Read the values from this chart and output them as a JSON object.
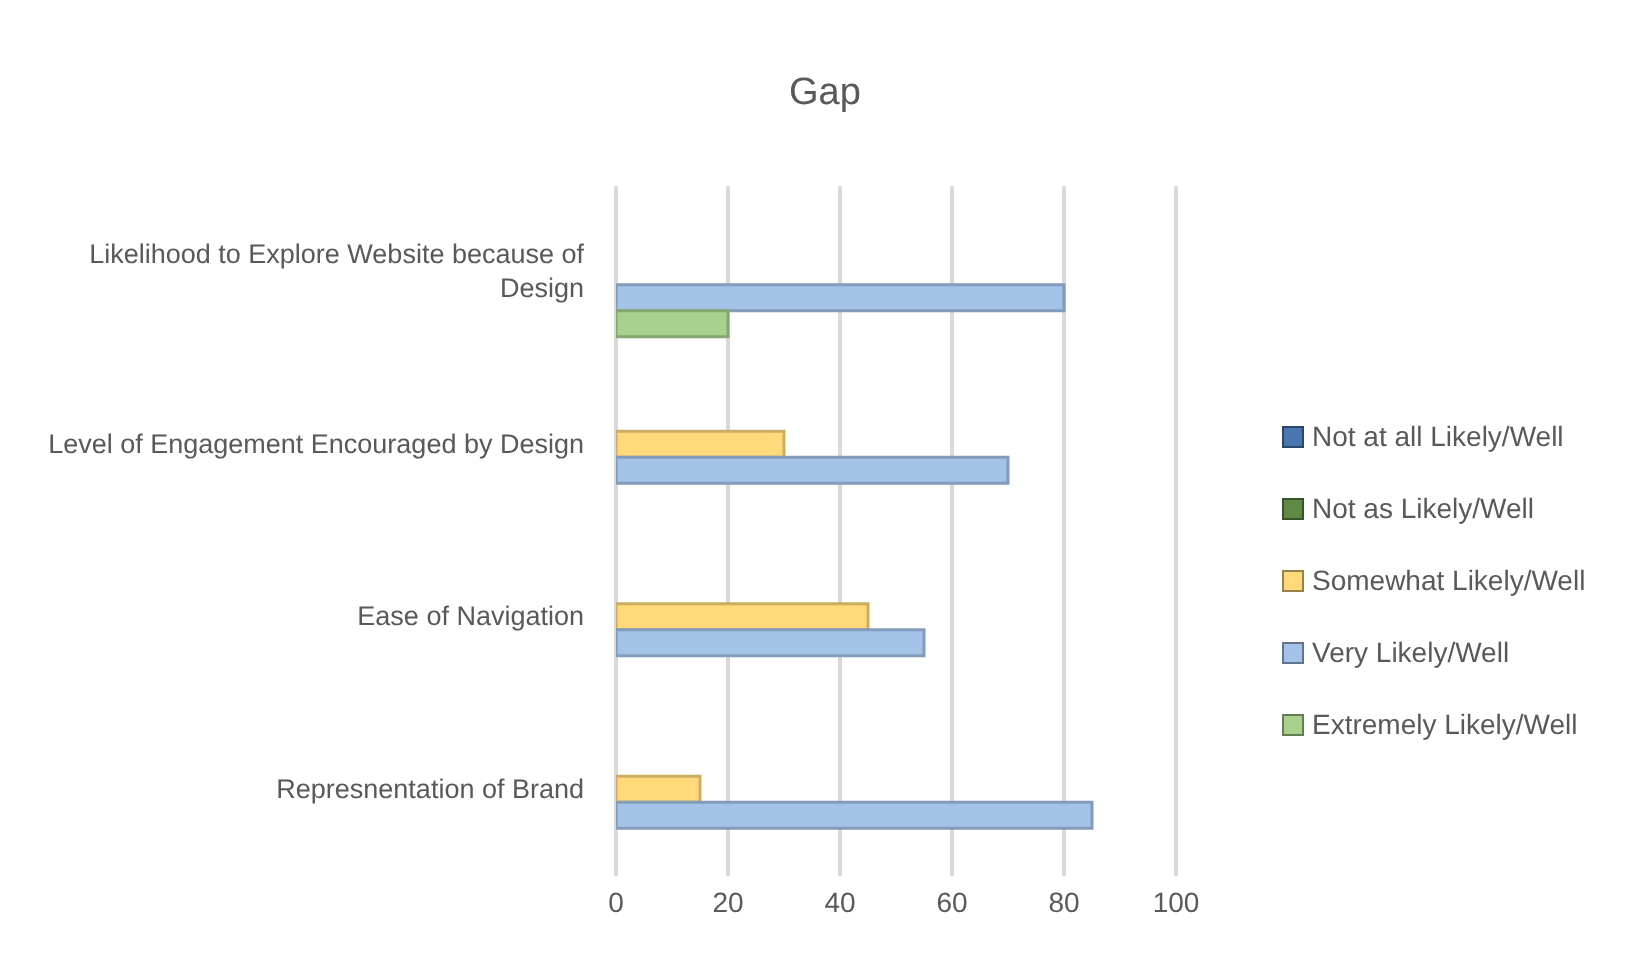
{
  "chart_data": {
    "type": "bar",
    "orientation": "horizontal",
    "title": "Gap",
    "categories": [
      "Likelihood to Explore Website because of Design",
      "Level of Engagement Encouraged by Design",
      "Ease of Navigation",
      "Represnentation of Brand"
    ],
    "series": [
      {
        "name": "Not at all Likely/Well",
        "color": "#4a76b0",
        "values": [
          null,
          null,
          null,
          null
        ]
      },
      {
        "name": "Not as Likely/Well",
        "color": "#5e8a45",
        "values": [
          null,
          null,
          null,
          null
        ]
      },
      {
        "name": "Somewhat Likely/Well",
        "color": "#ffd97a",
        "values": [
          null,
          30,
          45,
          15
        ]
      },
      {
        "name": "Very Likely/Well",
        "color": "#a3c3e8",
        "values": [
          80,
          70,
          55,
          85
        ]
      },
      {
        "name": "Extremely Likely/Well",
        "color": "#a9d18e",
        "values": [
          20,
          null,
          null,
          null
        ]
      }
    ],
    "xlim": [
      0,
      100
    ],
    "xticks": [
      0,
      20,
      40,
      60,
      80,
      100
    ],
    "grid": "x",
    "legend": "right"
  }
}
